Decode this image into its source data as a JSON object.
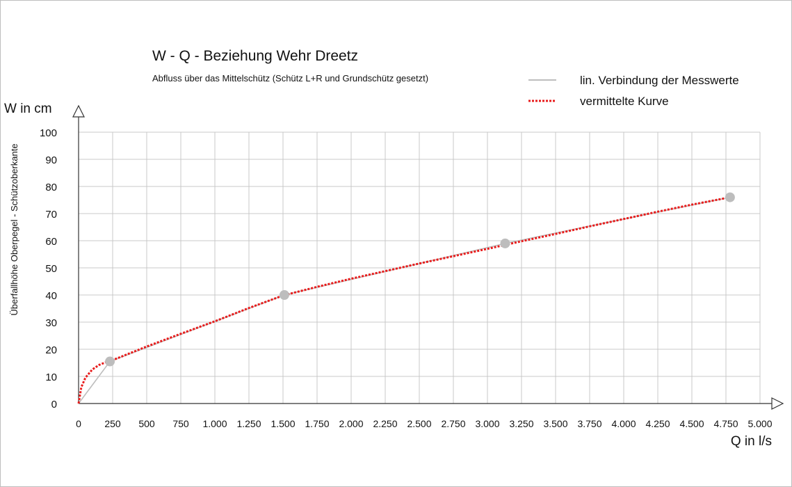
{
  "chart_data": {
    "type": "line",
    "title": "W - Q - Beziehung Wehr Dreetz",
    "subtitle": "Abfluss über das Mittelschütz (Schütz L+R und Grundschütz gesetzt)",
    "xlabel": "Q in l/s",
    "ylabel": "W in cm",
    "ylabel_side": "Überfallhöhe Oberpegel  - Schützoberkante",
    "xlim": [
      0,
      5000
    ],
    "ylim": [
      0,
      100
    ],
    "x_ticks": [
      0,
      250,
      500,
      750,
      1000,
      1250,
      1500,
      1750,
      2000,
      2250,
      2500,
      2750,
      3000,
      3250,
      3500,
      3750,
      4000,
      4250,
      4500,
      4750,
      5000
    ],
    "x_tick_labels": [
      "0",
      "250",
      "500",
      "750",
      "1.000",
      "1.250",
      "1.500",
      "1.750",
      "2.000",
      "2.250",
      "2.500",
      "2.750",
      "3.000",
      "3.250",
      "3.500",
      "3.750",
      "4.000",
      "4.250",
      "4.500",
      "4.750",
      "5.000"
    ],
    "y_ticks": [
      0,
      10,
      20,
      30,
      40,
      50,
      60,
      70,
      80,
      90,
      100
    ],
    "y_tick_labels": [
      "0",
      "10",
      "20",
      "30",
      "40",
      "50",
      "60",
      "70",
      "80",
      "90",
      "100"
    ],
    "grid": true,
    "legend_position": "top-right",
    "series": [
      {
        "name": "lin. Verbindung der Messwerte",
        "color": "#bdbdbd",
        "style": "solid",
        "x": [
          0,
          230,
          1510,
          3130,
          4780
        ],
        "y": [
          0,
          15.5,
          40,
          59,
          76
        ],
        "markers": true
      },
      {
        "name": "vermittelte Kurve",
        "color": "#e81c1c",
        "style": "dotted",
        "x": [
          0,
          20,
          50,
          100,
          150,
          200,
          250,
          500,
          750,
          1000,
          1250,
          1500,
          1750,
          2000,
          2250,
          2500,
          2750,
          3000,
          3250,
          3500,
          3750,
          4000,
          4250,
          4500,
          4780
        ],
        "y": [
          0,
          6,
          9.5,
          12.5,
          14.2,
          15.2,
          16,
          21,
          25.7,
          30.3,
          35.2,
          39.8,
          43,
          46,
          48.8,
          51.6,
          54.3,
          57,
          59.8,
          62.5,
          65.3,
          68,
          70.7,
          73.3,
          76
        ]
      }
    ]
  }
}
